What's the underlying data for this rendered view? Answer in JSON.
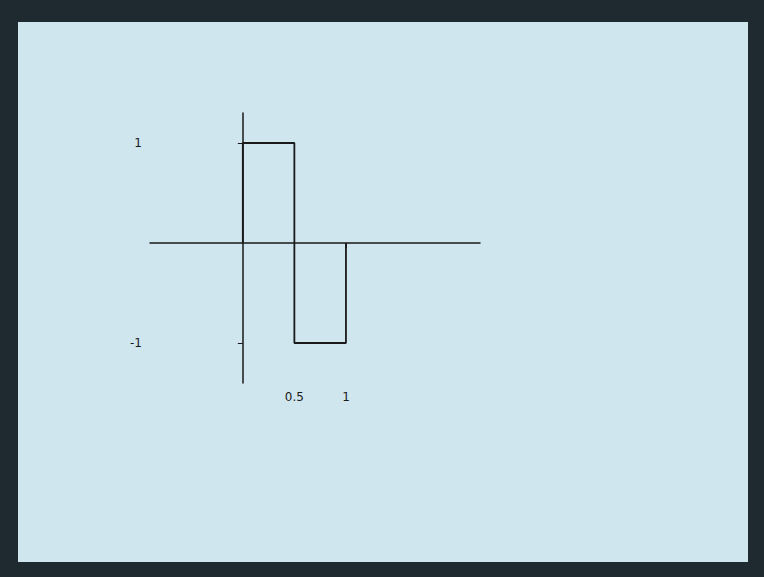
{
  "chart_data": {
    "type": "line",
    "color": "#1a1a1a",
    "line_style": "solid",
    "grid": false,
    "x": [
      0,
      0,
      0.5,
      0.5,
      1,
      1
    ],
    "values": [
      0,
      1,
      1,
      -1,
      -1,
      0
    ],
    "xlim": [
      -0.9,
      2.3
    ],
    "xticks": [
      0.5,
      1
    ],
    "ylim": [
      -1.4,
      1.3
    ],
    "yticks": [
      -1,
      1
    ]
  }
}
